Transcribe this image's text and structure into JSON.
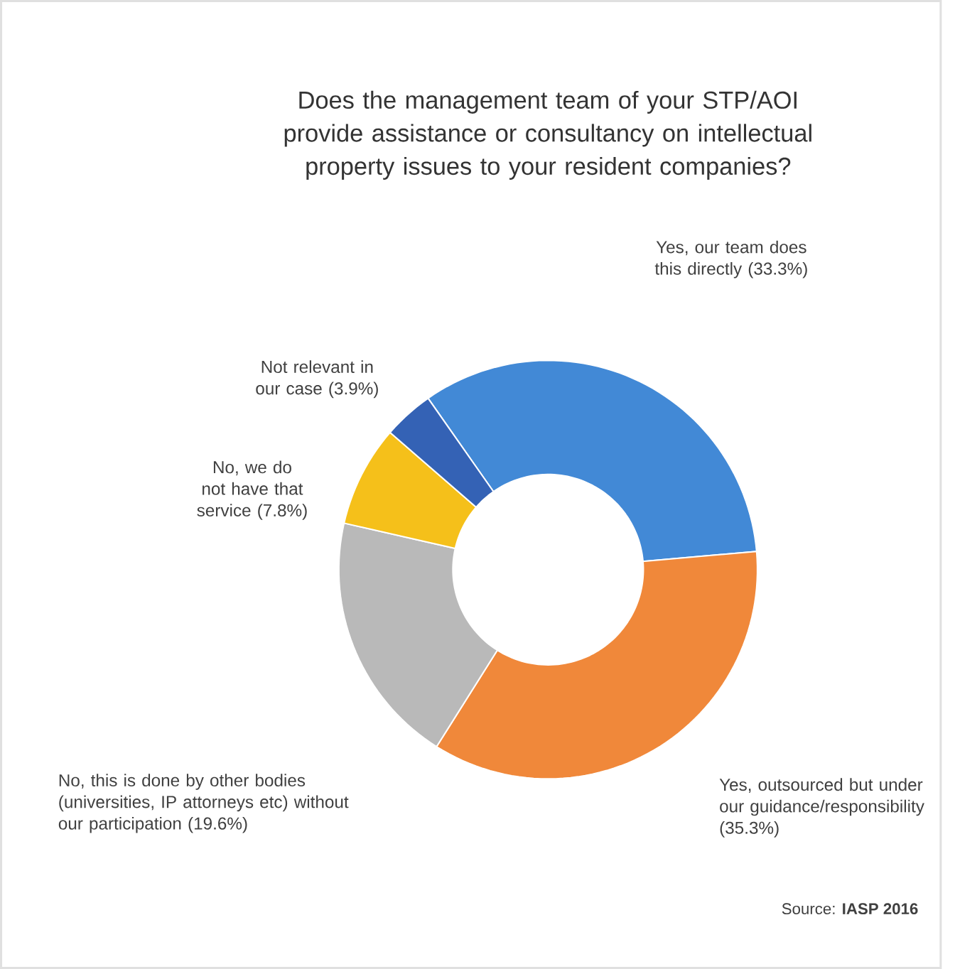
{
  "chart_data": {
    "type": "donut",
    "title": "Does the management team of your STP/AOI provide assistance or consultancy  on intellectual property issues to your resident companies?",
    "categories": [
      "Yes, our team does this directly",
      "Yes, outsourced but under our guidance/responsibility",
      "No, this is done by other bodies (universities, IP attorneys etc) without our participation",
      "No, we do not have that service",
      "Not relevant in our case"
    ],
    "values": [
      33.3,
      35.3,
      19.6,
      7.8,
      3.9
    ],
    "colors": [
      "#4289d6",
      "#f0883a",
      "#b9b9b9",
      "#f5c01a",
      "#3462b5"
    ],
    "value_labels": [
      "(33.3%)",
      "(35.3%)",
      "(19.6%)",
      "(7.8%)",
      "(3.9%)"
    ],
    "annotations": [
      "Source: **IASP 2016**"
    ]
  }
}
